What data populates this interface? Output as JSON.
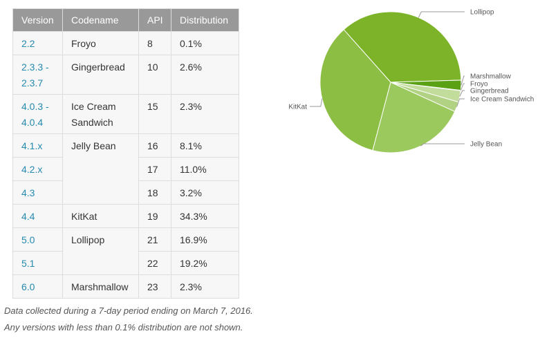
{
  "table": {
    "headers": [
      "Version",
      "Codename",
      "API",
      "Distribution"
    ],
    "rows": [
      {
        "version": "2.2",
        "codename": "Froyo",
        "api": "8",
        "dist": "0.1%"
      },
      {
        "version": "2.3.3 -\n2.3.7",
        "codename": "Gingerbread",
        "api": "10",
        "dist": "2.6%"
      },
      {
        "version": "4.0.3 -\n4.0.4",
        "codename": "Ice Cream\nSandwich",
        "api": "15",
        "dist": "2.3%"
      },
      {
        "version": "4.1.x",
        "codename": "Jelly Bean",
        "api": "16",
        "dist": "8.1%"
      },
      {
        "version": "4.2.x",
        "codename": "",
        "api": "17",
        "dist": "11.0%"
      },
      {
        "version": "4.3",
        "codename": "",
        "api": "18",
        "dist": "3.2%"
      },
      {
        "version": "4.4",
        "codename": "KitKat",
        "api": "19",
        "dist": "34.3%"
      },
      {
        "version": "5.0",
        "codename": "Lollipop",
        "api": "21",
        "dist": "16.9%"
      },
      {
        "version": "5.1",
        "codename": "",
        "api": "22",
        "dist": "19.2%"
      },
      {
        "version": "6.0",
        "codename": "Marshmallow",
        "api": "23",
        "dist": "2.3%"
      }
    ]
  },
  "notes": {
    "line1": "Data collected during a 7-day period ending on March 7, 2016.",
    "line2": "Any versions with less than 0.1% distribution are not shown."
  },
  "chart_data": {
    "type": "pie",
    "title": "",
    "slices": [
      {
        "label": "Lollipop",
        "value": 36.1,
        "color": "#7cb329"
      },
      {
        "label": "Marshmallow",
        "value": 2.3,
        "color": "#5aa214"
      },
      {
        "label": "Froyo",
        "value": 0.1,
        "color": "#d5e6b4"
      },
      {
        "label": "Gingerbread",
        "value": 2.6,
        "color": "#c2dc9b"
      },
      {
        "label": "Ice Cream Sandwich",
        "value": 2.3,
        "color": "#b0d282"
      },
      {
        "label": "Jelly Bean",
        "value": 22.3,
        "color": "#9bc95e"
      },
      {
        "label": "KitKat",
        "value": 34.3,
        "color": "#8bbe42"
      }
    ],
    "label_color": "#555555",
    "line_color": "#999999"
  }
}
